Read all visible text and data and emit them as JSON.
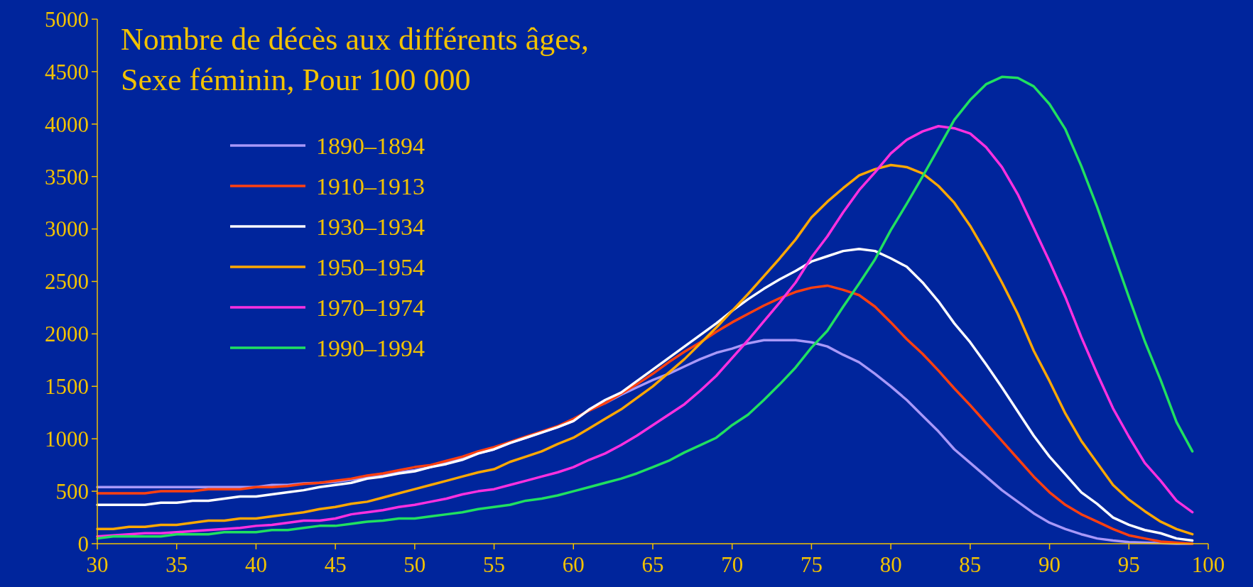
{
  "chart_data": {
    "type": "line",
    "title": "Nombre de décès aux différents âges,\nSexe féminin, Pour 100 000",
    "x": [
      30,
      31,
      32,
      33,
      34,
      35,
      36,
      37,
      38,
      39,
      40,
      41,
      42,
      43,
      44,
      45,
      46,
      47,
      48,
      49,
      50,
      51,
      52,
      53,
      54,
      55,
      56,
      57,
      58,
      59,
      60,
      61,
      62,
      63,
      64,
      65,
      66,
      67,
      68,
      69,
      70,
      71,
      72,
      73,
      74,
      75,
      76,
      77,
      78,
      79,
      80,
      81,
      82,
      83,
      84,
      85,
      86,
      87,
      88,
      89,
      90,
      91,
      92,
      93,
      94,
      95,
      96,
      97,
      98,
      99
    ],
    "xlim": [
      30,
      100
    ],
    "xticks": [
      30,
      35,
      40,
      45,
      50,
      55,
      60,
      65,
      70,
      75,
      80,
      85,
      90,
      95,
      100
    ],
    "ylim": [
      0,
      5000
    ],
    "yticks": [
      0,
      500,
      1000,
      1500,
      2000,
      2500,
      3000,
      3500,
      4000,
      4500,
      5000
    ],
    "grid": false,
    "legend": "top left",
    "line_style": "solid",
    "marker": "none",
    "series": [
      {
        "name": "1890–1894",
        "color": "#a898f8",
        "values": [
          540,
          540,
          540,
          540,
          540,
          540,
          540,
          540,
          540,
          540,
          540,
          560,
          560,
          575,
          580,
          590,
          610,
          630,
          650,
          680,
          700,
          730,
          770,
          810,
          860,
          900,
          960,
          1010,
          1060,
          1110,
          1170,
          1280,
          1340,
          1420,
          1490,
          1560,
          1620,
          1690,
          1760,
          1820,
          1860,
          1910,
          1940,
          1940,
          1940,
          1920,
          1880,
          1800,
          1730,
          1620,
          1500,
          1370,
          1220,
          1070,
          900,
          770,
          640,
          510,
          400,
          290,
          200,
          140,
          90,
          50,
          30,
          15,
          10,
          5,
          0,
          0
        ]
      },
      {
        "name": "1910–1913",
        "color": "#ff4010",
        "values": [
          480,
          480,
          480,
          480,
          500,
          500,
          500,
          520,
          520,
          520,
          540,
          540,
          550,
          570,
          580,
          600,
          620,
          650,
          670,
          700,
          730,
          750,
          790,
          830,
          880,
          920,
          970,
          1020,
          1070,
          1120,
          1190,
          1270,
          1340,
          1430,
          1520,
          1620,
          1730,
          1830,
          1920,
          2020,
          2110,
          2190,
          2270,
          2340,
          2400,
          2440,
          2460,
          2420,
          2370,
          2260,
          2110,
          1950,
          1810,
          1650,
          1480,
          1320,
          1150,
          980,
          810,
          640,
          490,
          370,
          280,
          210,
          140,
          80,
          50,
          20,
          10,
          0
        ]
      },
      {
        "name": "1930–1934",
        "color": "#ffffff",
        "values": [
          370,
          370,
          370,
          370,
          390,
          390,
          410,
          410,
          430,
          450,
          450,
          470,
          490,
          510,
          540,
          560,
          580,
          620,
          640,
          670,
          690,
          730,
          760,
          800,
          860,
          900,
          960,
          1010,
          1060,
          1110,
          1170,
          1280,
          1370,
          1440,
          1550,
          1660,
          1770,
          1880,
          1990,
          2100,
          2220,
          2330,
          2430,
          2520,
          2600,
          2690,
          2740,
          2790,
          2810,
          2790,
          2720,
          2640,
          2490,
          2310,
          2100,
          1920,
          1710,
          1490,
          1260,
          1030,
          830,
          660,
          490,
          380,
          250,
          180,
          130,
          100,
          50,
          30
        ]
      },
      {
        "name": "1950–1954",
        "color": "#ffa800",
        "values": [
          140,
          140,
          160,
          160,
          180,
          180,
          200,
          220,
          220,
          240,
          240,
          260,
          280,
          300,
          330,
          350,
          380,
          400,
          440,
          480,
          520,
          560,
          600,
          640,
          680,
          710,
          780,
          830,
          880,
          950,
          1010,
          1100,
          1190,
          1280,
          1390,
          1500,
          1630,
          1760,
          1910,
          2060,
          2220,
          2380,
          2550,
          2720,
          2900,
          3110,
          3260,
          3390,
          3510,
          3570,
          3610,
          3590,
          3530,
          3410,
          3250,
          3030,
          2770,
          2490,
          2190,
          1840,
          1550,
          1240,
          980,
          770,
          560,
          420,
          310,
          210,
          140,
          90
        ]
      },
      {
        "name": "1970–1974",
        "color": "#ff30e0",
        "values": [
          70,
          80,
          90,
          100,
          100,
          110,
          120,
          130,
          140,
          150,
          170,
          180,
          200,
          220,
          220,
          240,
          280,
          300,
          320,
          350,
          370,
          400,
          430,
          470,
          500,
          520,
          560,
          600,
          640,
          680,
          730,
          800,
          860,
          940,
          1030,
          1130,
          1230,
          1330,
          1460,
          1600,
          1770,
          1940,
          2120,
          2300,
          2490,
          2730,
          2930,
          3160,
          3370,
          3540,
          3720,
          3850,
          3930,
          3980,
          3960,
          3910,
          3780,
          3590,
          3330,
          3010,
          2690,
          2350,
          1970,
          1620,
          1290,
          1020,
          770,
          600,
          410,
          300
        ]
      },
      {
        "name": "1990–1994",
        "color": "#20e060",
        "values": [
          50,
          70,
          70,
          70,
          70,
          90,
          90,
          90,
          110,
          110,
          110,
          130,
          130,
          150,
          170,
          170,
          190,
          210,
          220,
          240,
          240,
          260,
          280,
          300,
          330,
          350,
          370,
          410,
          430,
          460,
          500,
          540,
          580,
          620,
          670,
          730,
          790,
          870,
          940,
          1010,
          1130,
          1230,
          1370,
          1520,
          1680,
          1870,
          2030,
          2260,
          2480,
          2710,
          2990,
          3240,
          3500,
          3770,
          4040,
          4230,
          4380,
          4450,
          4440,
          4360,
          4190,
          3950,
          3600,
          3210,
          2780,
          2350,
          1930,
          1560,
          1160,
          880
        ]
      }
    ]
  }
}
